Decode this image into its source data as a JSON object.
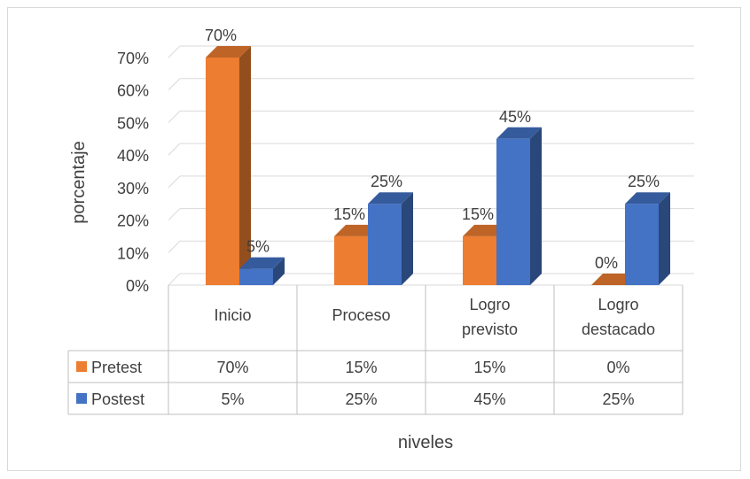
{
  "chart_data": {
    "type": "bar",
    "categories": [
      "Inicio",
      "Proceso",
      "Logro previsto",
      "Logro destacado"
    ],
    "category_lines": [
      [
        "Inicio"
      ],
      [
        "Proceso"
      ],
      [
        "Logro",
        "previsto"
      ],
      [
        "Logro",
        "destacado"
      ]
    ],
    "series": [
      {
        "name": "Pretest",
        "values": [
          70,
          15,
          15,
          0
        ],
        "labels": [
          "70%",
          "15%",
          "15%",
          "0%"
        ],
        "color": "#ed7d31"
      },
      {
        "name": "Postest",
        "values": [
          5,
          25,
          45,
          25
        ],
        "labels": [
          "5%",
          "25%",
          "45%",
          "25%"
        ],
        "color": "#4472c4"
      }
    ],
    "yticks": [
      0,
      10,
      20,
      30,
      40,
      50,
      60,
      70
    ],
    "ytick_labels": [
      "0%",
      "10%",
      "20%",
      "30%",
      "40%",
      "50%",
      "60%",
      "70%"
    ],
    "ylim": [
      0,
      70
    ],
    "xlabel": "niveles",
    "ylabel": "porcentaje",
    "grid": true,
    "data_table": true,
    "style": "3d-clustered-column"
  }
}
